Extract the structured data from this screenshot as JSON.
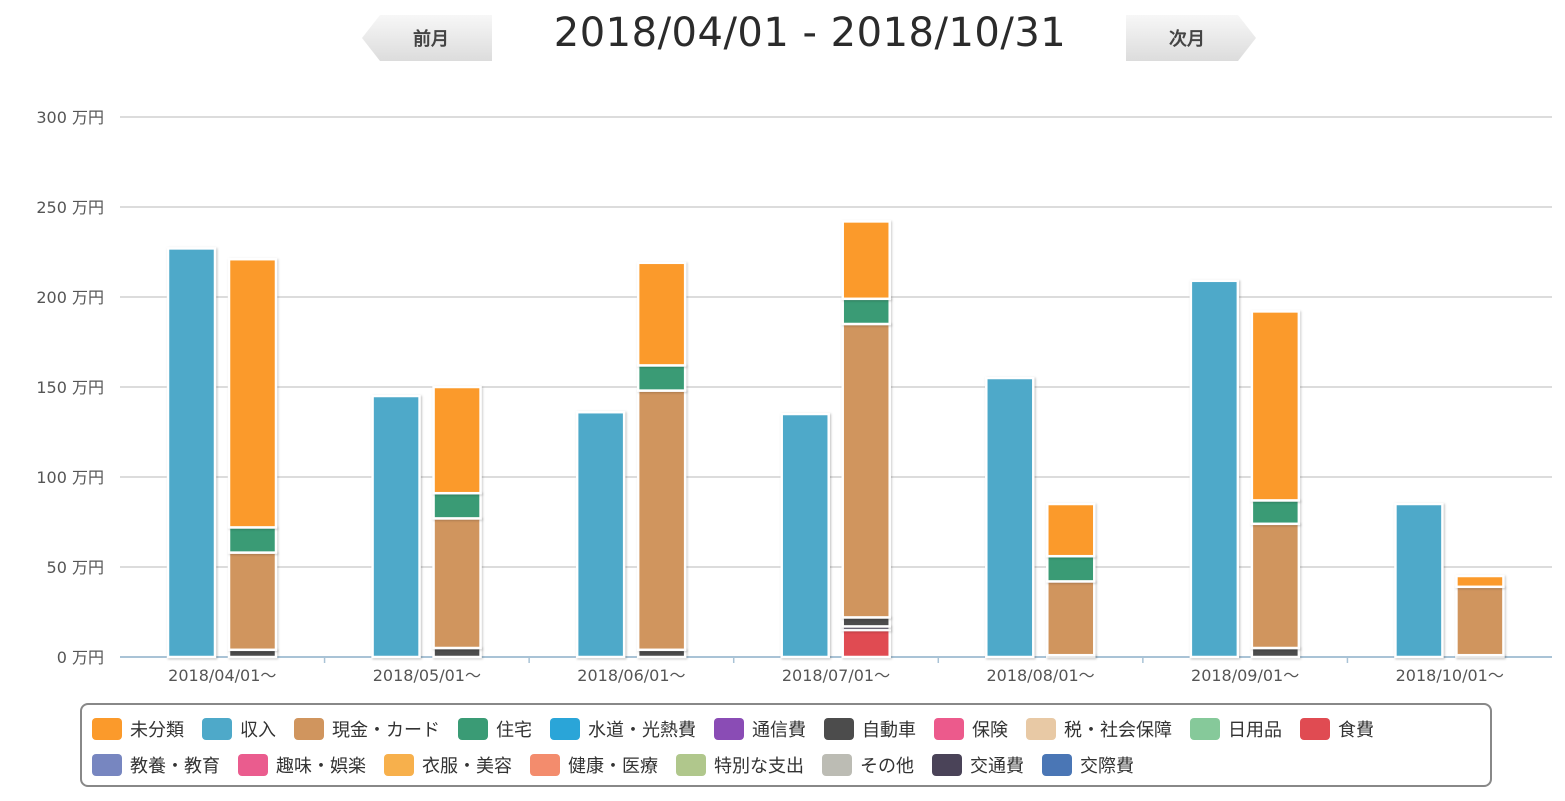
{
  "header": {
    "prev_label": "前月",
    "next_label": "次月",
    "period": "2018/04/01 - 2018/10/31"
  },
  "chart_data": {
    "type": "bar",
    "stacked": true,
    "unit_suffix": " 万円",
    "ylim": [
      0,
      300
    ],
    "yticks": [
      0,
      50,
      100,
      150,
      200,
      250,
      300
    ],
    "grid": true,
    "legend_position": "bottom",
    "categories": [
      "2018/04/01～",
      "2018/05/01～",
      "2018/06/01～",
      "2018/07/01～",
      "2018/08/01～",
      "2018/09/01～",
      "2018/10/01～"
    ],
    "income": {
      "name": "収入",
      "color": "#4ea9c9",
      "values": [
        227,
        145,
        136,
        135,
        155,
        209,
        85
      ]
    },
    "expense_stack": [
      {
        "name": "食費",
        "color": "#e04b52",
        "values": [
          0,
          0,
          0,
          15,
          0,
          0,
          0
        ]
      },
      {
        "name": "交通費",
        "color": "#4a4358",
        "values": [
          0,
          0,
          0,
          2,
          0,
          0,
          0
        ]
      },
      {
        "name": "自動車",
        "color": "#4c4c4c",
        "values": [
          4,
          5,
          4,
          5,
          1,
          5,
          1
        ]
      },
      {
        "name": "現金・カード",
        "color": "#d0955e",
        "values": [
          54,
          72,
          144,
          163,
          41,
          69,
          38
        ]
      },
      {
        "name": "住宅",
        "color": "#3a9b75",
        "values": [
          14,
          14,
          14,
          14,
          14,
          13,
          0
        ]
      },
      {
        "name": "未分類",
        "color": "#fb9a2b",
        "values": [
          149,
          59,
          57,
          43,
          29,
          105,
          6
        ]
      }
    ]
  },
  "legend": {
    "rows": [
      [
        {
          "label": "未分類",
          "color": "#fb9a2b"
        },
        {
          "label": "収入",
          "color": "#4ea9c9"
        },
        {
          "label": "現金・カード",
          "color": "#d0955e"
        },
        {
          "label": "住宅",
          "color": "#3a9b75"
        },
        {
          "label": "水道・光熱費",
          "color": "#2aa5d8"
        },
        {
          "label": "通信費",
          "color": "#8a4cb5"
        },
        {
          "label": "自動車",
          "color": "#4c4c4c"
        },
        {
          "label": "保険",
          "color": "#ec5a8c"
        },
        {
          "label": "税・社会保障",
          "color": "#e8c9a5"
        },
        {
          "label": "日用品",
          "color": "#86c99a"
        },
        {
          "label": "食費",
          "color": "#e04b52"
        }
      ],
      [
        {
          "label": "教養・教育",
          "color": "#7786c0"
        },
        {
          "label": "趣味・娯楽",
          "color": "#ea5c8e"
        },
        {
          "label": "衣服・美容",
          "color": "#f7b04c"
        },
        {
          "label": "健康・医療",
          "color": "#f38c6d"
        },
        {
          "label": "特別な支出",
          "color": "#b0c78c"
        },
        {
          "label": "その他",
          "color": "#bcbcb4"
        },
        {
          "label": "交通費",
          "color": "#4a4358"
        },
        {
          "label": "交際費",
          "color": "#4a76b5"
        }
      ]
    ]
  }
}
